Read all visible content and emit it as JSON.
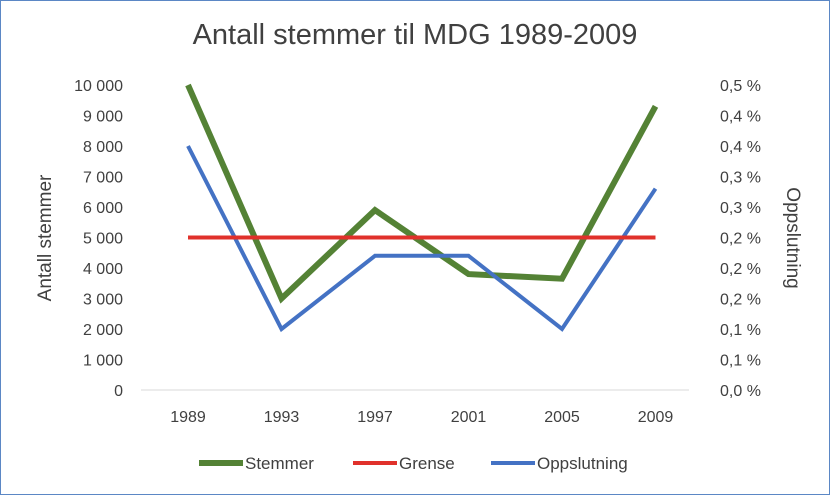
{
  "chart_data": {
    "type": "line",
    "title": "Antall stemmer til MDG 1989-2009",
    "categories": [
      "1989",
      "1993",
      "1997",
      "2001",
      "2005",
      "2009"
    ],
    "y_left": {
      "label": "Antall stemmer",
      "range": [
        0,
        10000
      ],
      "ticks": [
        "0",
        "1 000",
        "2 000",
        "3 000",
        "4 000",
        "5 000",
        "6 000",
        "7 000",
        "8 000",
        "9 000",
        "10 000"
      ]
    },
    "y_right": {
      "label": "Oppslutning",
      "range": [
        0,
        0.5
      ],
      "unit": "%",
      "ticks": [
        "0,0 %",
        "0,1 %",
        "0,1 %",
        "0,2 %",
        "0,2 %",
        "0,2 %",
        "0,3 %",
        "0,3 %",
        "0,4 %",
        "0,4 %",
        "0,5 %"
      ]
    },
    "series": [
      {
        "name": "Stemmer",
        "axis": "left",
        "color": "#548235",
        "values": [
          10000,
          3000,
          5900,
          3800,
          3650,
          9300
        ]
      },
      {
        "name": "Grense",
        "axis": "left",
        "color": "#e0312b",
        "values": [
          5000,
          5000,
          5000,
          5000,
          5000,
          5000
        ]
      },
      {
        "name": "Oppslutning",
        "axis": "right",
        "color": "#4472c4",
        "values": [
          0.4,
          0.1,
          0.22,
          0.22,
          0.1,
          0.33
        ]
      }
    ],
    "legend": "bottom",
    "grid": false
  }
}
